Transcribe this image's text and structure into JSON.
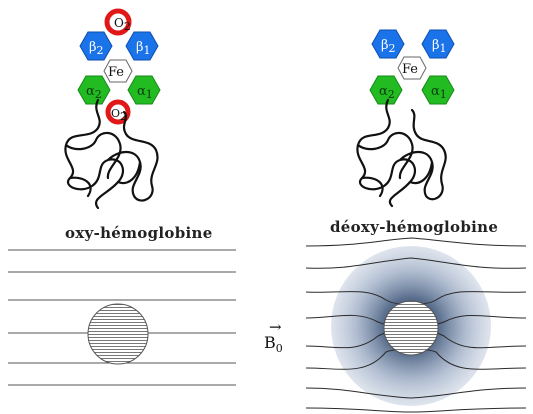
{
  "colors": {
    "beta": "#1a73e8",
    "alpha": "#22bb22",
    "oxygen": "#e01818",
    "heme_center": "#ffffff",
    "chain": "#111111",
    "field_lines": "#444444",
    "halo": "#4a6a9a"
  },
  "left": {
    "caption": "oxy-hémoglobine",
    "iron": "Fe",
    "beta1": "β",
    "beta1_sub": "1",
    "beta2": "β",
    "beta2_sub": "2",
    "alpha1": "α",
    "alpha1_sub": "1",
    "alpha2": "α",
    "alpha2_sub": "2",
    "oxygen_top": "O",
    "oxygen_top_sub": "2",
    "oxygen_bottom": "O",
    "oxygen_bottom_sub": "2"
  },
  "right": {
    "caption": "déoxy-hémoglobine",
    "iron": "Fe",
    "beta1": "β",
    "beta1_sub": "1",
    "beta2": "β",
    "beta2_sub": "2",
    "alpha1": "α",
    "alpha1_sub": "1",
    "alpha2": "α",
    "alpha2_sub": "2"
  },
  "field": {
    "label": "B",
    "label_sub": "0",
    "arrow": "→"
  }
}
